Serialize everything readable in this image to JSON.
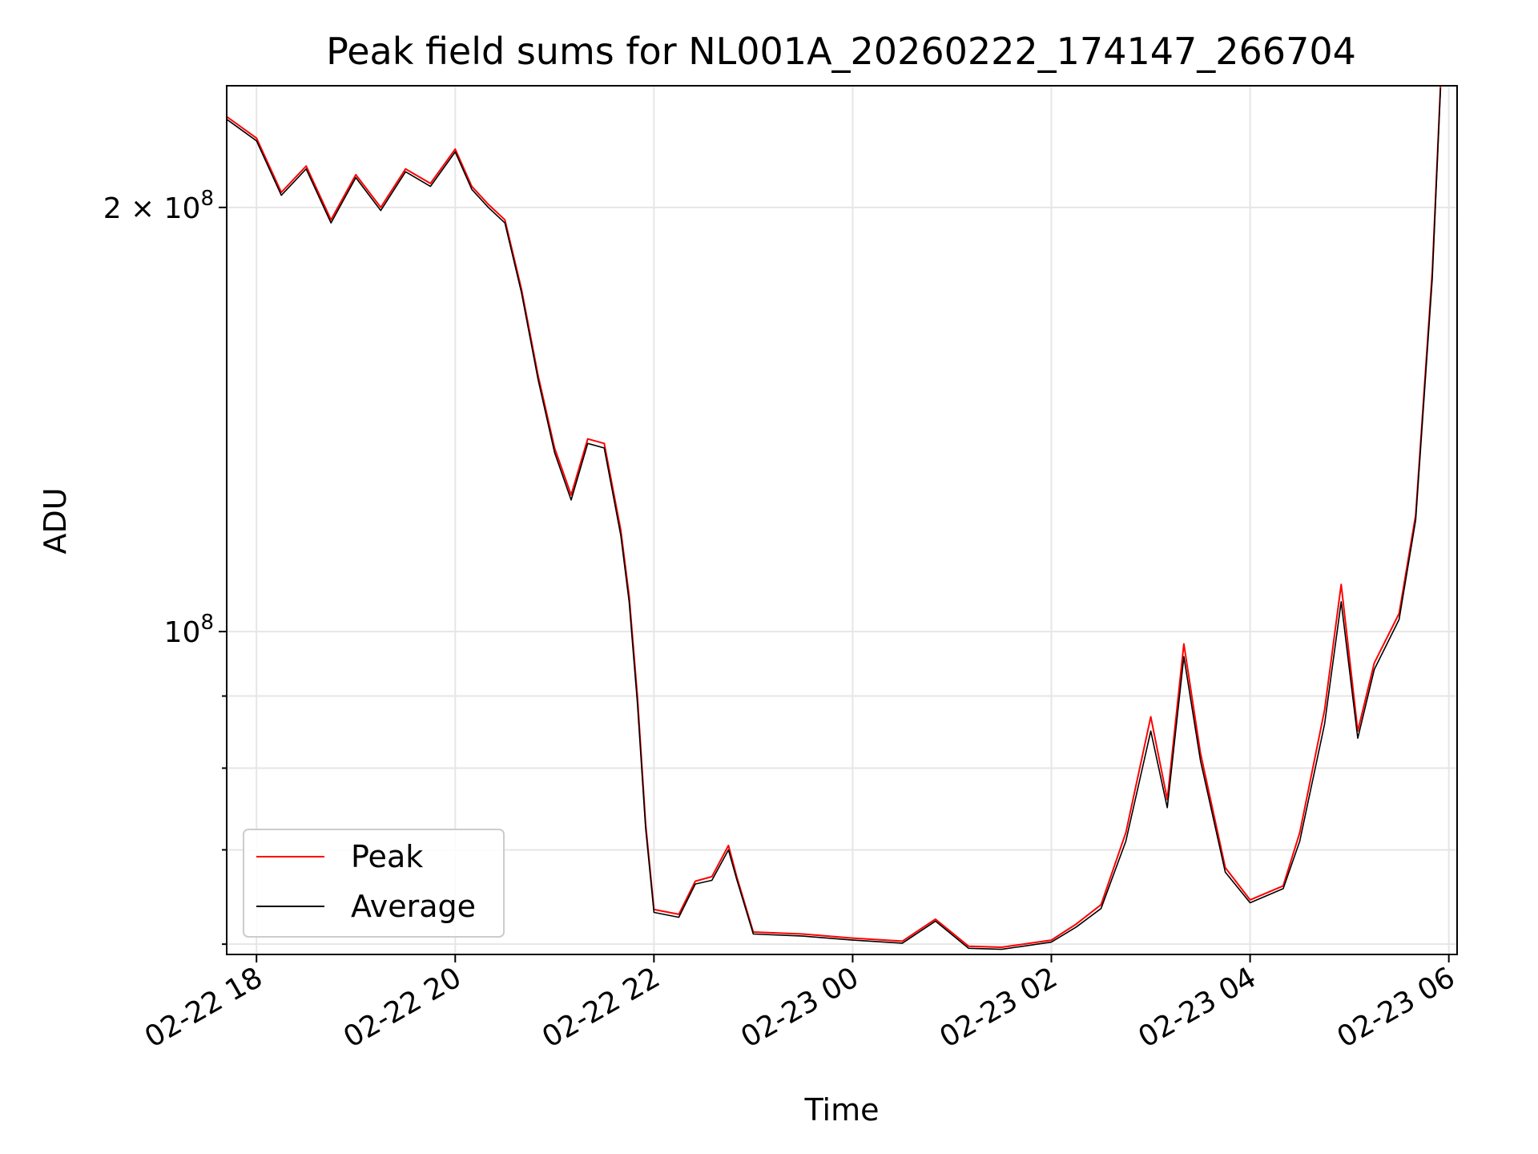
{
  "chart_data": {
    "type": "line",
    "title": "Peak field sums for NL001A_20260222_174147_266704",
    "xlabel": "Time",
    "ylabel": "ADU",
    "yscale": "log",
    "grid": true,
    "legend_position": "lower-left",
    "xlim": [
      "2026-02-22 17:42",
      "2026-02-23 06:05"
    ],
    "ylim": [
      59000000,
      244000000
    ],
    "x_ticks": [
      {
        "value": "2026-02-22 18:00",
        "label": "02-22 18"
      },
      {
        "value": "2026-02-22 20:00",
        "label": "02-22 20"
      },
      {
        "value": "2026-02-22 22:00",
        "label": "02-22 22"
      },
      {
        "value": "2026-02-23 00:00",
        "label": "02-23 00"
      },
      {
        "value": "2026-02-23 02:00",
        "label": "02-23 02"
      },
      {
        "value": "2026-02-23 04:00",
        "label": "02-23 04"
      },
      {
        "value": "2026-02-23 06:00",
        "label": "02-23 06"
      }
    ],
    "y_major_ticks": [
      {
        "value": 100000000,
        "label_base": "10",
        "label_exp": "8"
      },
      {
        "value": 200000000,
        "label_base": "2 × 10",
        "label_exp": "8"
      }
    ],
    "y_minor_ticks": [
      60000000,
      70000000,
      80000000,
      90000000
    ],
    "x": [
      "2026-02-22 17:42",
      "2026-02-22 18:00",
      "2026-02-22 18:15",
      "2026-02-22 18:30",
      "2026-02-22 18:45",
      "2026-02-22 19:00",
      "2026-02-22 19:15",
      "2026-02-22 19:30",
      "2026-02-22 19:45",
      "2026-02-22 20:00",
      "2026-02-22 20:10",
      "2026-02-22 20:20",
      "2026-02-22 20:30",
      "2026-02-22 20:40",
      "2026-02-22 20:50",
      "2026-02-22 21:00",
      "2026-02-22 21:10",
      "2026-02-22 21:20",
      "2026-02-22 21:30",
      "2026-02-22 21:40",
      "2026-02-22 21:45",
      "2026-02-22 21:50",
      "2026-02-22 21:55",
      "2026-02-22 22:00",
      "2026-02-22 22:15",
      "2026-02-22 22:25",
      "2026-02-22 22:35",
      "2026-02-22 22:45",
      "2026-02-22 22:50",
      "2026-02-22 23:00",
      "2026-02-22 23:30",
      "2026-02-23 00:00",
      "2026-02-23 00:30",
      "2026-02-23 00:50",
      "2026-02-23 01:10",
      "2026-02-23 01:30",
      "2026-02-23 02:00",
      "2026-02-23 02:15",
      "2026-02-23 02:30",
      "2026-02-23 02:45",
      "2026-02-23 03:00",
      "2026-02-23 03:10",
      "2026-02-23 03:20",
      "2026-02-23 03:30",
      "2026-02-23 03:45",
      "2026-02-23 04:00",
      "2026-02-23 04:20",
      "2026-02-23 04:30",
      "2026-02-23 04:45",
      "2026-02-23 04:55",
      "2026-02-23 05:05",
      "2026-02-23 05:15",
      "2026-02-23 05:30",
      "2026-02-23 05:40",
      "2026-02-23 05:50",
      "2026-02-23 05:55"
    ],
    "series": [
      {
        "name": "Peak",
        "color": "#ff0000",
        "values": [
          232000000,
          224000000,
          205000000,
          214000000,
          196000000,
          211000000,
          200000000,
          213000000,
          208000000,
          220000000,
          207000000,
          201000000,
          196000000,
          175000000,
          152000000,
          135000000,
          125000000,
          137000000,
          136000000,
          118000000,
          106000000,
          90000000,
          73000000,
          63500000,
          63000000,
          66500000,
          67000000,
          70500000,
          67000000,
          61200000,
          61000000,
          60600000,
          60300000,
          62500000,
          59800000,
          59700000,
          60400000,
          62000000,
          64000000,
          72000000,
          87000000,
          76000000,
          98000000,
          82000000,
          68000000,
          64500000,
          66000000,
          72000000,
          88000000,
          108000000,
          85000000,
          95000000,
          103000000,
          121000000,
          180000000,
          244000000
        ]
      },
      {
        "name": "Average",
        "color": "#000000",
        "values": [
          231000000,
          223000000,
          204000000,
          213000000,
          195000000,
          210000000,
          199000000,
          212000000,
          207000000,
          219000000,
          206000000,
          200000000,
          195000000,
          174000000,
          151000000,
          134000000,
          124000000,
          136000000,
          135000000,
          117000000,
          105000000,
          89000000,
          72500000,
          63200000,
          62700000,
          66200000,
          66600000,
          70000000,
          66700000,
          61000000,
          60800000,
          60400000,
          60100000,
          62300000,
          59600000,
          59500000,
          60200000,
          61700000,
          63600000,
          71000000,
          85000000,
          75000000,
          96000000,
          81000000,
          67500000,
          64200000,
          65700000,
          71000000,
          86000000,
          105000000,
          84000000,
          94000000,
          102000000,
          120000000,
          178000000,
          243000000
        ]
      }
    ]
  }
}
